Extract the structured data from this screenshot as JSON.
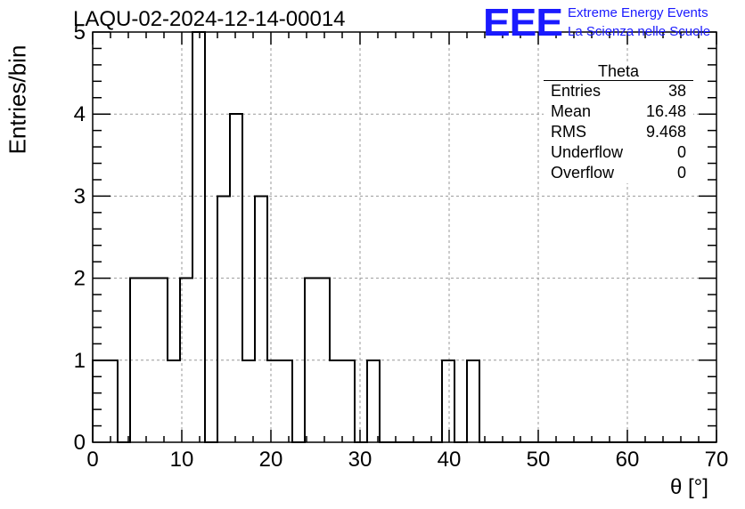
{
  "title": "LAQU-02-2024-12-14-00014",
  "logo": {
    "mark": "EEE",
    "line1": "Extreme Energy Events",
    "line2": "La Scienza nelle Scuole",
    "color": "#1a1aff"
  },
  "stats_box": {
    "title": "Theta",
    "rows": [
      {
        "label": "Entries",
        "value": "38"
      },
      {
        "label": "Mean",
        "value": "16.48"
      },
      {
        "label": "RMS",
        "value": "9.468"
      },
      {
        "label": "Underflow",
        "value": "0"
      },
      {
        "label": "Overflow",
        "value": "0"
      }
    ]
  },
  "chart_data": {
    "type": "bar",
    "style": "step histogram",
    "title": "LAQU-02-2024-12-14-00014",
    "xlabel": "θ [°]",
    "ylabel": "Entries/bin",
    "xlim": [
      0,
      70
    ],
    "ylim": [
      0,
      5
    ],
    "bin_width": 1.4,
    "bin_edges_start": 0,
    "values": [
      1,
      1,
      0,
      2,
      2,
      2,
      1,
      2,
      5,
      0,
      3,
      4,
      1,
      3,
      1,
      1,
      0,
      2,
      2,
      1,
      1,
      0,
      1,
      0,
      0,
      0,
      0,
      0,
      1,
      0,
      1,
      0,
      0,
      0,
      0,
      0,
      0,
      0,
      0,
      0,
      0,
      0,
      0,
      0,
      0,
      0,
      0,
      0,
      0,
      0
    ],
    "xticks": [
      "0",
      "10",
      "20",
      "30",
      "40",
      "50",
      "60",
      "70"
    ],
    "yticks": [
      "0",
      "1",
      "2",
      "3",
      "4",
      "5"
    ],
    "grid": true,
    "line_color": "#000000"
  }
}
